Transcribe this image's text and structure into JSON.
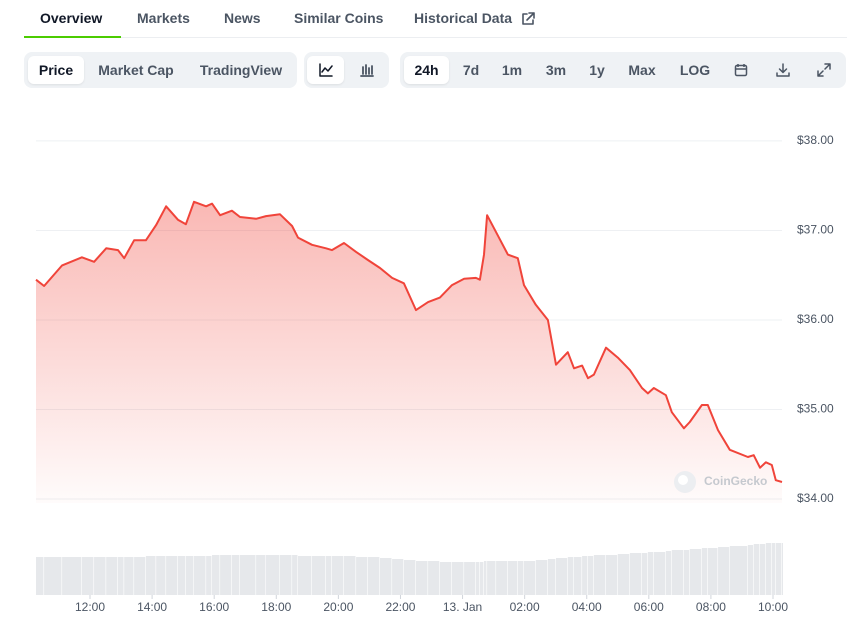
{
  "tabs": [
    "Overview",
    "Markets",
    "News",
    "Similar Coins",
    "Historical Data"
  ],
  "chart_tabs": [
    "Price",
    "Market Cap",
    "TradingView"
  ],
  "ranges": [
    "24h",
    "7d",
    "1m",
    "3m",
    "1y",
    "Max",
    "LOG"
  ],
  "watermark": "CoinGecko",
  "chart_data": {
    "type": "area",
    "x": [
      10.26,
      10.52,
      11.1,
      11.74,
      12.13,
      12.52,
      12.9,
      13.1,
      13.42,
      13.8,
      14.13,
      14.45,
      14.83,
      15.09,
      15.35,
      15.74,
      15.93,
      16.19,
      16.57,
      16.83,
      17.35,
      17.67,
      18.12,
      18.51,
      18.7,
      19.15,
      19.6,
      19.79,
      20.18,
      20.57,
      20.95,
      21.34,
      21.73,
      22.11,
      22.5,
      22.89,
      23.27,
      23.66,
      24.05,
      24.43,
      24.56,
      24.69,
      24.79,
      25.08,
      25.46,
      25.78,
      25.98,
      26.36,
      26.75,
      27.01,
      27.39,
      27.59,
      27.85,
      28.04,
      28.23,
      28.62,
      29.0,
      29.39,
      29.78,
      29.97,
      30.16,
      30.55,
      30.74,
      31.13,
      31.32,
      31.71,
      31.9,
      32.23,
      32.61,
      33.19,
      33.38,
      33.58,
      33.77,
      33.96,
      34.09,
      34.29
    ],
    "values": [
      36.45,
      36.38,
      36.61,
      36.7,
      36.65,
      36.8,
      36.78,
      36.69,
      36.89,
      36.89,
      37.06,
      37.27,
      37.12,
      37.07,
      37.32,
      37.27,
      37.3,
      37.17,
      37.22,
      37.15,
      37.13,
      37.16,
      37.18,
      37.05,
      36.92,
      36.84,
      36.8,
      36.78,
      36.86,
      36.76,
      36.67,
      36.58,
      36.47,
      36.41,
      36.11,
      36.2,
      36.25,
      36.39,
      36.46,
      36.47,
      36.45,
      36.73,
      37.17,
      36.98,
      36.73,
      36.69,
      36.39,
      36.17,
      36.0,
      35.5,
      35.64,
      35.46,
      35.49,
      35.35,
      35.39,
      35.69,
      35.58,
      35.44,
      35.24,
      35.18,
      35.24,
      35.16,
      34.97,
      34.79,
      34.86,
      35.05,
      35.05,
      34.77,
      34.55,
      34.47,
      34.49,
      34.35,
      34.41,
      34.38,
      34.21,
      34.19
    ],
    "volume": [
      38,
      38,
      38,
      38,
      38,
      38,
      38,
      38,
      38,
      39,
      39,
      39,
      39,
      39,
      39,
      39,
      40,
      40,
      40,
      40,
      40,
      40,
      40,
      40,
      39,
      39,
      39,
      39,
      39,
      38,
      38,
      37,
      36,
      35,
      34,
      34,
      33,
      33,
      33,
      33,
      33,
      34,
      34,
      34,
      34,
      34,
      34,
      35,
      36,
      37,
      38,
      38,
      39,
      39,
      40,
      40,
      41,
      42,
      42,
      43,
      43,
      44,
      45,
      45,
      46,
      47,
      47,
      48,
      49,
      50,
      51,
      51,
      52,
      52,
      52,
      52
    ],
    "color": "#f0443a",
    "xlim": [
      10.26,
      34.29
    ],
    "xticks": [
      {
        "value": 12,
        "label": "12:00"
      },
      {
        "value": 14,
        "label": "14:00"
      },
      {
        "value": 16,
        "label": "16:00"
      },
      {
        "value": 18,
        "label": "18:00"
      },
      {
        "value": 20,
        "label": "20:00"
      },
      {
        "value": 22,
        "label": "22:00"
      },
      {
        "value": 24,
        "label": "13. Jan"
      },
      {
        "value": 26,
        "label": "02:00"
      },
      {
        "value": 28,
        "label": "04:00"
      },
      {
        "value": 30,
        "label": "06:00"
      },
      {
        "value": 32,
        "label": "08:00"
      },
      {
        "value": 34,
        "label": "10:00"
      }
    ],
    "ylim": [
      33.9,
      38.2
    ],
    "yticks": [
      {
        "value": 34,
        "label": "$34.00"
      },
      {
        "value": 35,
        "label": "$35.00"
      },
      {
        "value": 36,
        "label": "$36.00"
      },
      {
        "value": 37,
        "label": "$37.00"
      },
      {
        "value": 38,
        "label": "$38.00"
      }
    ],
    "grid": true
  }
}
